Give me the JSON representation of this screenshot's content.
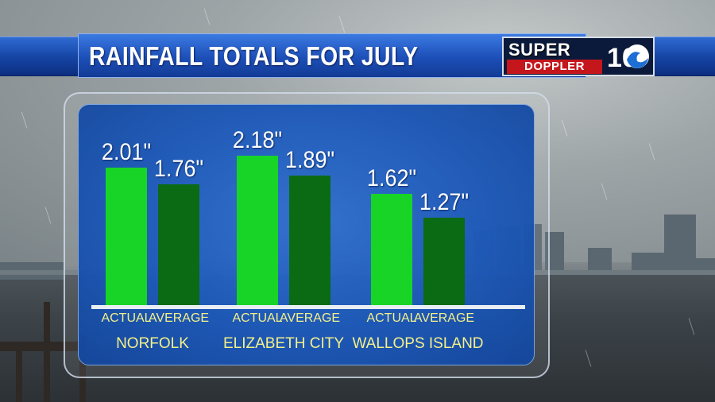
{
  "header": {
    "title": "RAINFALL TOTALS FOR JULY"
  },
  "logo": {
    "super": "SUPER",
    "doppler": "DOPPLER",
    "number": "10"
  },
  "colors": {
    "actual": "#18d427",
    "average": "#0b6a14",
    "panel": "#1d59b9",
    "label": "#f3f08a"
  },
  "chart_data": {
    "type": "bar",
    "title": "RAINFALL TOTALS FOR JULY",
    "categories": [
      "NORFOLK",
      "ELIZABETH CITY",
      "WALLOPS ISLAND"
    ],
    "series": [
      {
        "name": "ACTUAL",
        "values": [
          2.01,
          2.18,
          1.62
        ],
        "labels": [
          "2.01\"",
          "2.18\"",
          "1.62\""
        ]
      },
      {
        "name": "AVERAGE",
        "values": [
          1.76,
          1.89,
          1.27
        ],
        "labels": [
          "1.76\"",
          "1.89\"",
          "1.27\""
        ]
      }
    ],
    "ylim": [
      0,
      2.4
    ],
    "grid": false,
    "legend": "none"
  }
}
